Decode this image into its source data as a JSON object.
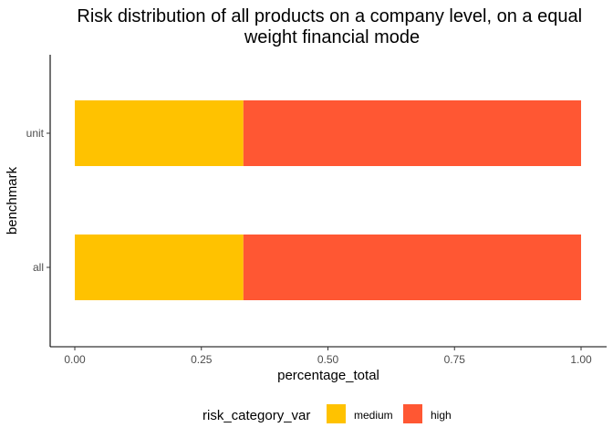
{
  "chart_data": {
    "type": "bar",
    "orientation": "horizontal",
    "stacked": true,
    "title": "Risk distribution of all products on a company level, on a equal weight financial mode",
    "title_lines": [
      "Risk distribution of all products on a company level, on a equal",
      "weight financial mode"
    ],
    "xlabel": "percentage_total",
    "ylabel": "benchmark",
    "categories": [
      "all",
      "unit"
    ],
    "series": [
      {
        "name": "medium",
        "color": "#FFC200",
        "values": [
          0.333,
          0.333
        ]
      },
      {
        "name": "high",
        "color": "#FF5733",
        "values": [
          0.667,
          0.667
        ]
      }
    ],
    "xlim": [
      0,
      1
    ],
    "x_ticks": [
      0,
      0.25,
      0.5,
      0.75,
      1
    ],
    "x_tick_labels": [
      "0.00",
      "0.25",
      "0.50",
      "0.75",
      "1.00"
    ],
    "grid": false,
    "legend": {
      "title": "risk_category_var",
      "position": "bottom"
    }
  }
}
